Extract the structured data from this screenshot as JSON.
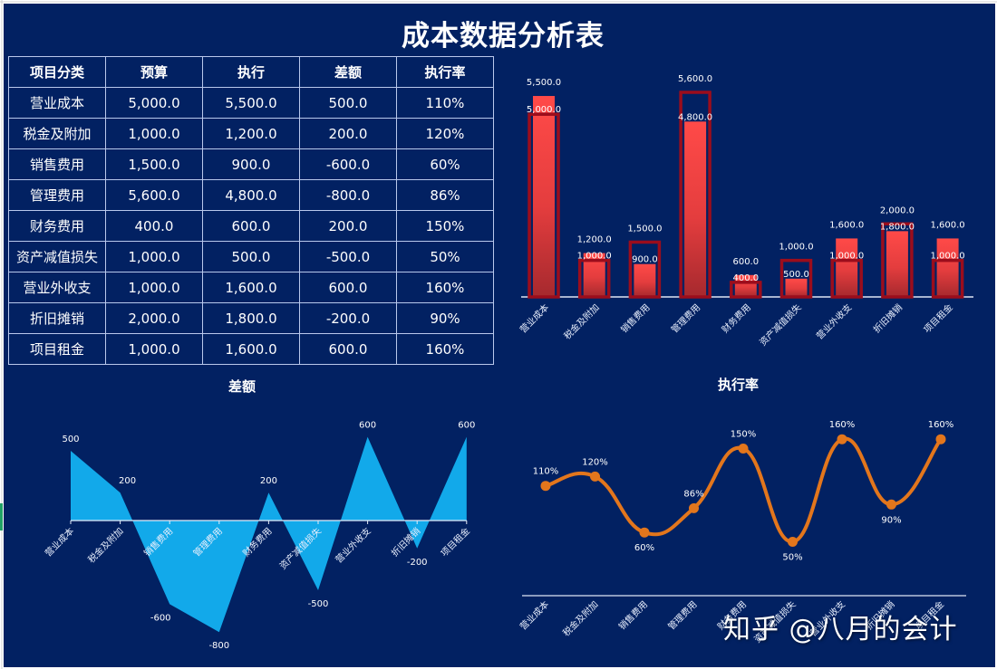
{
  "title": "成本数据分析表",
  "table": {
    "headers": [
      "项目分类",
      "预算",
      "执行",
      "差额",
      "执行率"
    ],
    "rows": [
      [
        "营业成本",
        "5,000.0",
        "5,500.0",
        "500.0",
        "110%"
      ],
      [
        "税金及附加",
        "1,000.0",
        "1,200.0",
        "200.0",
        "120%"
      ],
      [
        "销售费用",
        "1,500.0",
        "900.0",
        "-600.0",
        "60%"
      ],
      [
        "管理费用",
        "5,600.0",
        "4,800.0",
        "-800.0",
        "86%"
      ],
      [
        "财务费用",
        "400.0",
        "600.0",
        "200.0",
        "150%"
      ],
      [
        "资产减值损失",
        "1,000.0",
        "500.0",
        "-500.0",
        "50%"
      ],
      [
        "营业外收支",
        "1,000.0",
        "1,600.0",
        "600.0",
        "160%"
      ],
      [
        "折旧摊销",
        "2,000.0",
        "1,800.0",
        "-200.0",
        "90%"
      ],
      [
        "项目租金",
        "1,000.0",
        "1,600.0",
        "600.0",
        "160%"
      ]
    ]
  },
  "colors": {
    "background": "#022162",
    "budget_outline": "#9b0d1c",
    "actual_bar_top": "#ff4a48",
    "actual_bar_bottom": "#a6292e",
    "variance_area": "#12a9ea",
    "rate_line": "#e3761c",
    "text": "#ffffff",
    "table_border": "#b9c8ec"
  },
  "chart_data": [
    {
      "type": "bar",
      "title": "",
      "categories": [
        "营业成本",
        "税金及附加",
        "销售费用",
        "管理费用",
        "财务费用",
        "资产减值损失",
        "营业外收支",
        "折旧摊销",
        "项目租金"
      ],
      "series": [
        {
          "name": "预算",
          "values": [
            5000,
            1000,
            1500,
            5600,
            400,
            1000,
            1000,
            2000,
            1000
          ],
          "style": "outline"
        },
        {
          "name": "执行",
          "values": [
            5500,
            1200,
            900,
            4800,
            600,
            500,
            1600,
            1800,
            1600
          ],
          "style": "filled-gradient"
        }
      ],
      "labels": {
        "budget": [
          "5,000.0",
          "1,000.0",
          "1,500.0",
          "5,600.0",
          "400.0",
          "1,000.0",
          "1,000.0",
          "2,000.0",
          "1,000.0"
        ],
        "actual": [
          "5,500.0",
          "1,200.0",
          "900.0",
          "4,800.0",
          "600.0",
          "500.0",
          "1,600.0",
          "1,800.0",
          "1,600.0"
        ]
      },
      "xlabel": "",
      "ylabel": "",
      "ylim": [
        0,
        6000
      ],
      "grid": false,
      "legend": "none"
    },
    {
      "type": "area",
      "title": "差额",
      "categories": [
        "营业成本",
        "税金及附加",
        "销售费用",
        "管理费用",
        "财务费用",
        "资产减值损失",
        "营业外收支",
        "折旧摊销",
        "项目租金"
      ],
      "values": [
        500,
        200,
        -600,
        -800,
        200,
        -500,
        600,
        -200,
        600
      ],
      "labels": [
        "500",
        "200",
        "-600",
        "-800",
        "200",
        "-500",
        "600",
        "-200",
        "600"
      ],
      "xlabel": "",
      "ylabel": "",
      "ylim": [
        -900,
        700
      ],
      "grid": false,
      "legend": "none"
    },
    {
      "type": "line",
      "title": "执行率",
      "categories": [
        "营业成本",
        "税金及附加",
        "销售费用",
        "管理费用",
        "财务费用",
        "资产减值损失",
        "营业外收支",
        "折旧摊销",
        "项目租金"
      ],
      "values": [
        110,
        120,
        60,
        86,
        150,
        50,
        160,
        90,
        160
      ],
      "labels": [
        "110%",
        "120%",
        "60%",
        "86%",
        "150%",
        "50%",
        "160%",
        "90%",
        "160%"
      ],
      "smooth": true,
      "markers": true,
      "xlabel": "",
      "ylabel": "",
      "ylim": [
        0,
        180
      ],
      "grid": false,
      "legend": "none"
    }
  ],
  "watermark": "知乎 @八月的会计"
}
